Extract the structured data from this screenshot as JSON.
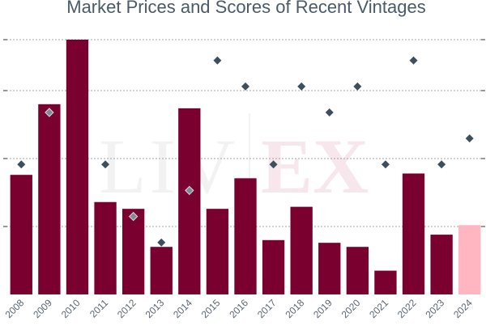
{
  "chart_data": {
    "type": "bar",
    "title": "Market Prices and Scores of Recent Vintages",
    "categories": [
      "2008",
      "2009",
      "2010",
      "2011",
      "2012",
      "2013",
      "2014",
      "2015",
      "2016",
      "2017",
      "2018",
      "2019",
      "2020",
      "2021",
      "2022",
      "2023",
      "2024"
    ],
    "series": [
      {
        "name": "",
        "type": "bar",
        "values": [
          176,
          280,
          375,
          136,
          126,
          70,
          274,
          126,
          171,
          80,
          129,
          76,
          70,
          35,
          178,
          88,
          102
        ],
        "colors": [
          "#7a0030",
          "#7a0030",
          "#7a0030",
          "#7a0030",
          "#7a0030",
          "#7a0030",
          "#7a0030",
          "#7a0030",
          "#7a0030",
          "#7a0030",
          "#7a0030",
          "#7a0030",
          "#7a0030",
          "#7a0030",
          "#7a0030",
          "#7a0030",
          "#ffb6c1"
        ]
      },
      {
        "name": "",
        "type": "scatter",
        "values": [
          95,
          97,
          null,
          95,
          93,
          92,
          94,
          99,
          98,
          95,
          98,
          97,
          98,
          95,
          99,
          95,
          96
        ],
        "marker": "diamond"
      }
    ],
    "ylim_left": [
      0,
      375
    ],
    "ylim_right": [
      90,
      99.8
    ],
    "grid": true,
    "gridline_values": [
      100,
      200,
      300,
      375
    ],
    "watermark": "LIV-EX",
    "colors": {
      "bar": "#7a0030",
      "bar_highlight": "#ffb6c1",
      "marker_dark": "#3d4f5c",
      "marker_light": "#7f8a94",
      "grid": "#888888",
      "title": "#4a5a68"
    }
  }
}
